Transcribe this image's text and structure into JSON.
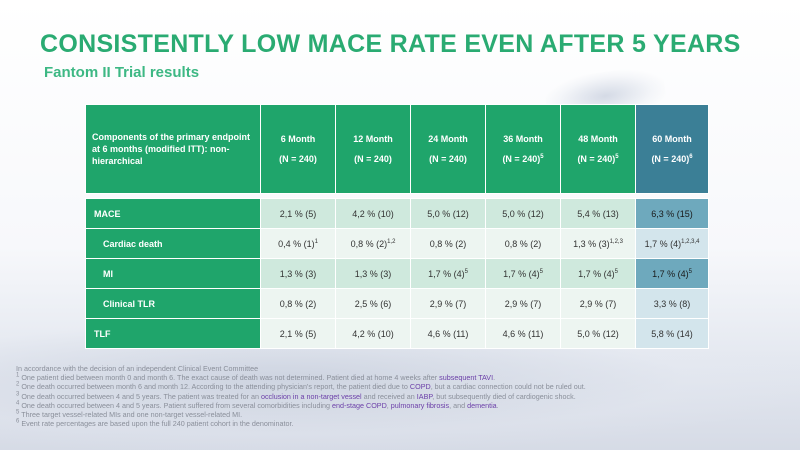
{
  "title": "CONSISTENTLY LOW MACE RATE EVEN AFTER 5 YEARS",
  "subtitle": "Fantom II Trial results",
  "table": {
    "header": {
      "components": "Components of the primary endpoint at 6 months  (modified ITT): non-hierarchical",
      "columns": [
        {
          "period": "6 Month",
          "n": "(N = 240)",
          "sup": ""
        },
        {
          "period": "12 Month",
          "n": "(N = 240)",
          "sup": ""
        },
        {
          "period": "24 Month",
          "n": "(N = 240)",
          "sup": ""
        },
        {
          "period": "36 Month",
          "n": "(N = 240)",
          "sup": "5"
        },
        {
          "period": "48 Month",
          "n": "(N = 240)",
          "sup": "5"
        },
        {
          "period": "60 Month",
          "n": "(N = 240)",
          "sup": "6"
        }
      ]
    },
    "rows": [
      {
        "label": "MACE",
        "cells": [
          {
            "v": "2,1 % (5)",
            "s": ""
          },
          {
            "v": "4,2 % (10)",
            "s": ""
          },
          {
            "v": "5,0 % (12)",
            "s": ""
          },
          {
            "v": "5,0 % (12)",
            "s": ""
          },
          {
            "v": "5,4 % (13)",
            "s": ""
          },
          {
            "v": "6,3 % (15)",
            "s": ""
          }
        ]
      },
      {
        "label": "Cardiac death",
        "cells": [
          {
            "v": "0,4 % (1)",
            "s": "1"
          },
          {
            "v": "0,8 % (2)",
            "s": "1,2"
          },
          {
            "v": "0,8 % (2)",
            "s": ""
          },
          {
            "v": "0,8 % (2)",
            "s": ""
          },
          {
            "v": "1,3 % (3)",
            "s": "1,2,3"
          },
          {
            "v": "1,7 % (4)",
            "s": "1,2,3,4"
          }
        ]
      },
      {
        "label": "MI",
        "cells": [
          {
            "v": "1,3 % (3)",
            "s": ""
          },
          {
            "v": "1,3 % (3)",
            "s": ""
          },
          {
            "v": "1,7 % (4)",
            "s": "5"
          },
          {
            "v": "1,7 % (4)",
            "s": "5"
          },
          {
            "v": "1,7 % (4)",
            "s": "5"
          },
          {
            "v": "1,7 % (4)",
            "s": "5"
          }
        ]
      },
      {
        "label": "Clinical TLR",
        "cells": [
          {
            "v": "0,8 % (2)",
            "s": ""
          },
          {
            "v": "2,5 % (6)",
            "s": ""
          },
          {
            "v": "2,9 % (7)",
            "s": ""
          },
          {
            "v": "2,9 % (7)",
            "s": ""
          },
          {
            "v": "2,9 % (7)",
            "s": ""
          },
          {
            "v": "3,3 % (8)",
            "s": ""
          }
        ]
      },
      {
        "label": "TLF",
        "cells": [
          {
            "v": "2,1 % (5)",
            "s": ""
          },
          {
            "v": "4,2 % (10)",
            "s": ""
          },
          {
            "v": "4,6 % (11)",
            "s": ""
          },
          {
            "v": "4,6 % (11)",
            "s": ""
          },
          {
            "v": "5,0 % (12)",
            "s": ""
          },
          {
            "v": "5,8 % (14)",
            "s": ""
          }
        ]
      }
    ]
  },
  "footnotes": {
    "intro": "In accordance with the decision of an independent Clinical Event Committee",
    "n1": {
      "num": "1",
      "a": " One patient died between month 0 and month 6. The exact cause of death was not determined. Patient died at home 4 weeks after ",
      "h1": "subsequent TAVI",
      "b": "."
    },
    "n2": {
      "num": "2",
      "a": " One death occurred between month 6 and month 12. According to the attending physician's report, the patient died due to ",
      "h1": "COPD",
      "b": ", but a cardiac connection could not be ruled out."
    },
    "n3": {
      "num": "3",
      "a": " One death occurred between 4 and 5 years. The patient was treated for an ",
      "h1": "occlusion in a non-target vessel",
      "b": " and received an ",
      "h2": "IABP",
      "c": ", but subsequently died of cardiogenic shock."
    },
    "n4": {
      "num": "4",
      "a": " One death occurred between 4 and 5 years. Patient suffered from several comorbidities including ",
      "h1": "end-stage COPD",
      "b": ", ",
      "h2": "pulmonary fibrosis",
      "c": ", and ",
      "h3": "dementia",
      "d": "."
    },
    "n5": {
      "num": "5",
      "a": " Three target vessel-related MIs and one non-target vessel-related MI."
    },
    "n6": {
      "num": "6",
      "a": " Event rate percentages are based upon the full 240 patient cohort in the denominator."
    }
  },
  "colors": {
    "green": "#1fa56b",
    "title_green": "#2aab72",
    "teal": "#3b7f96",
    "highlight": "#6b3fa8"
  }
}
